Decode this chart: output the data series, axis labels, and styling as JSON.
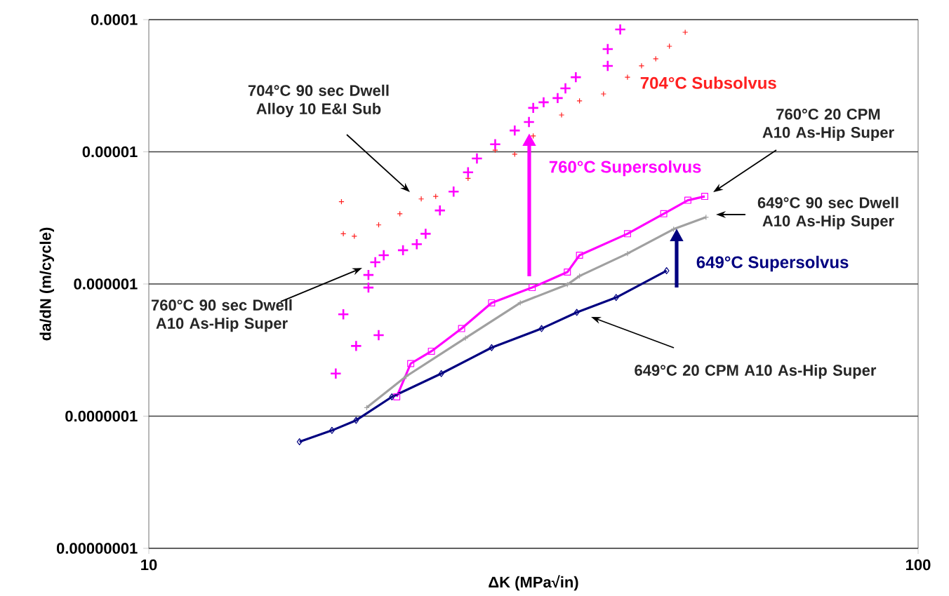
{
  "chart_data": {
    "type": "scatter",
    "xlabel": "ΔK (MPa√in)",
    "ylabel": "da/dN (m/cycle)",
    "log": "xy",
    "grid": "y",
    "xlim": [
      10,
      100
    ],
    "ylim": [
      1e-08,
      0.0001
    ],
    "xticks": [
      10,
      100
    ],
    "yticks": [
      {
        "value": 1e-08,
        "label": "0.00000001"
      },
      {
        "value": 1e-07,
        "label": "0.0000001"
      },
      {
        "value": 1e-06,
        "label": "0.000001"
      },
      {
        "value": 1e-05,
        "label": "0.00001"
      },
      {
        "value": 0.0001,
        "label": "0.0001"
      }
    ],
    "series": [
      {
        "name": "704°C Subsolvus",
        "marker": "cross",
        "color": "#ff2020",
        "x": [
          17.8,
          17.9,
          18.5,
          19.9,
          21.2,
          22.6,
          23.6,
          26.0,
          28.2,
          29.9,
          31.6,
          34.4,
          36.3,
          39.0,
          41.9,
          43.7,
          45.6,
          47.5,
          49.8
        ],
        "values": [
          4.2e-06,
          2.4e-06,
          2.3e-06,
          2.8e-06,
          3.4e-06,
          4.4e-06,
          4.6e-06,
          6.3e-06,
          1.03e-05,
          9.6e-06,
          1.32e-05,
          1.9e-05,
          2.43e-05,
          2.74e-05,
          3.67e-05,
          4.47e-05,
          5.05e-05,
          6.29e-05,
          8.03e-05
        ]
      },
      {
        "marker": "cross",
        "color": "#ff00ff",
        "x": [
          17.5,
          17.9,
          18.6,
          19.9,
          19.3,
          19.3,
          19.7,
          20.2,
          21.4,
          22.3,
          22.9,
          23.9,
          24.9,
          26.0,
          26.7,
          28.2,
          29.9,
          31.2,
          31.6,
          32.6,
          34.0,
          34.8,
          35.9,
          39.5,
          39.5,
          41.0
        ],
        "values": [
          2.1e-07,
          5.9e-07,
          3.4e-07,
          4.1e-07,
          9.4e-07,
          1.17e-06,
          1.46e-06,
          1.65e-06,
          1.8e-06,
          2e-06,
          2.4e-06,
          3.6e-06,
          5e-06,
          7e-06,
          8.9e-06,
          1.14e-05,
          1.45e-05,
          1.68e-05,
          2.15e-05,
          2.37e-05,
          2.55e-05,
          3.02e-05,
          3.67e-05,
          4.47e-05,
          5.99e-05,
          8.43e-05
        ]
      },
      {
        "type": "line",
        "marker": "square",
        "color": "#ff00ff",
        "x": [
          21.0,
          21.9,
          23.3,
          25.5,
          27.9,
          31.5,
          35.0,
          36.3,
          41.9,
          46.7,
          50.2,
          52.8
        ],
        "values": [
          1.4e-07,
          2.5e-07,
          3.1e-07,
          4.6e-07,
          7.2e-07,
          9.4e-07,
          1.23e-06,
          1.65e-06,
          2.4e-06,
          3.4e-06,
          4.3e-06,
          4.6e-06
        ]
      },
      {
        "type": "line",
        "marker": "cross",
        "color": "#a0a0a0",
        "x": [
          19.2,
          21.6,
          25.8,
          30.4,
          35.0,
          36.3,
          41.9,
          48.1,
          53.0
        ],
        "values": [
          1.16e-07,
          2e-07,
          3.9e-07,
          7.2e-07,
          9.9e-07,
          1.15e-06,
          1.7e-06,
          2.6e-06,
          3.2e-06
        ]
      },
      {
        "type": "line",
        "marker": "diamond",
        "color": "#000080",
        "x": [
          15.7,
          17.3,
          18.6,
          20.7,
          24.0,
          27.9,
          32.4,
          36.0,
          40.5,
          47.1
        ],
        "values": [
          6.4e-08,
          7.8e-08,
          9.3e-08,
          1.4e-07,
          2.1e-07,
          3.3e-07,
          4.6e-07,
          6.1e-07,
          7.9e-07,
          1.26e-06
        ]
      }
    ],
    "annotations": [
      "704°C 90 sec Dwell Alloy 10 E&I Sub",
      "760°C 90 sec Dwell A10 As-Hip Super",
      "760°C 20 CPM A10 As-Hip Super",
      "649°C 90 sec Dwell A10 As-Hip Super",
      "649°C 20 CPM A10 As-Hip Super",
      "760°C Supersolvus",
      "649°C Supersolvus"
    ]
  }
}
